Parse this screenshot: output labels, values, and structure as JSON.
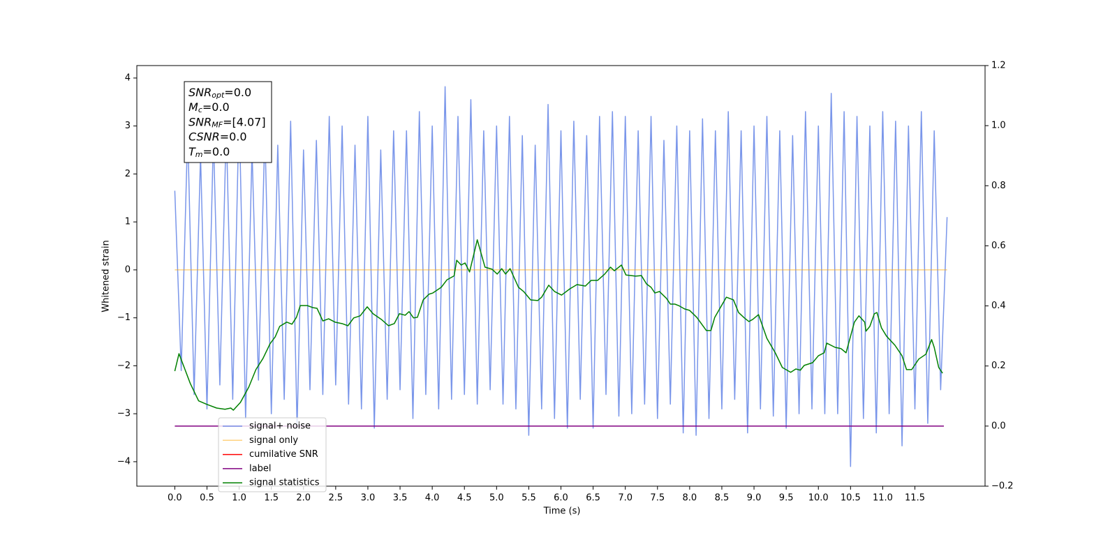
{
  "chart_data": {
    "type": "line",
    "xlabel": "Time (s)",
    "ylabel": "Whitened strain",
    "xlim": [
      -0.59,
      12.59
    ],
    "ylim": [
      -4.51,
      4.26
    ],
    "y2lim": [
      -0.2,
      1.2
    ],
    "xticks": [
      {
        "value": 0,
        "label": "0.0"
      },
      0.5,
      {
        "value": 1,
        "label": "1.0"
      },
      1.5,
      {
        "value": 2,
        "label": "2.0"
      },
      2.5,
      {
        "value": 3,
        "label": "3.0"
      },
      3.5,
      {
        "value": 4,
        "label": "4.0"
      },
      4.5,
      {
        "value": 5,
        "label": "5.0"
      },
      5.5,
      {
        "value": 6,
        "label": "6.0"
      },
      6.5,
      {
        "value": 7,
        "label": "7.0"
      },
      7.5,
      {
        "value": 8,
        "label": "8.0"
      },
      8.5,
      {
        "value": 9,
        "label": "9.0"
      },
      9.5,
      {
        "value": 10,
        "label": "10.0"
      },
      10.5,
      {
        "value": 11,
        "label": "11.0"
      },
      11.5
    ],
    "yticks": [
      {
        "value": -4,
        "label": "−4"
      },
      {
        "value": -3,
        "label": "−3"
      },
      {
        "value": -2,
        "label": "−2"
      },
      {
        "value": -1,
        "label": "−1"
      },
      0,
      1,
      2,
      3,
      4
    ],
    "y2ticks": [
      {
        "value": -0.2,
        "label": "−0.2"
      },
      {
        "value": 0,
        "label": "0.0"
      },
      0.2,
      0.4,
      0.6,
      0.8,
      {
        "value": 1,
        "label": "1.0"
      },
      {
        "value": 1.2,
        "label": "1.2"
      }
    ],
    "grid": false,
    "legend": "lower left",
    "annotation": [
      {
        "base": "SNR",
        "sub": "opt",
        "rest": "=0.0"
      },
      {
        "base": "M",
        "sub": "c",
        "rest": "=0.0"
      },
      {
        "base": "SNR",
        "sub": "MF",
        "rest": "=[4.07]"
      },
      {
        "base": "CSNR",
        "sub": null,
        "rest": "=0.0"
      },
      {
        "base": "T",
        "sub": "m",
        "rest": "=0.0"
      }
    ],
    "series": [
      {
        "name": "signal+ noise",
        "color": "#4169e1",
        "alpha": 0.7,
        "axis": "y",
        "x": [
          0,
          0.1,
          0.2,
          0.3,
          0.4,
          0.5,
          0.6,
          0.7,
          0.8,
          0.9,
          1,
          1.1,
          1.2,
          1.3,
          1.4,
          1.5,
          1.6,
          1.7,
          1.8,
          1.9,
          2,
          2.1,
          2.2,
          2.3,
          2.4,
          2.5,
          2.6,
          2.7,
          2.8,
          2.9,
          3,
          3.1,
          3.2,
          3.3,
          3.4,
          3.5,
          3.6,
          3.7,
          3.8,
          3.9,
          4,
          4.1,
          4.2,
          4.3,
          4.4,
          4.5,
          4.6,
          4.7,
          4.8,
          4.9,
          5,
          5.1,
          5.2,
          5.3,
          5.4,
          5.5,
          5.6,
          5.7,
          5.8,
          5.9,
          6,
          6.1,
          6.2,
          6.3,
          6.4,
          6.5,
          6.6,
          6.7,
          6.8,
          6.9,
          7,
          7.1,
          7.2,
          7.3,
          7.4,
          7.5,
          7.6,
          7.7,
          7.8,
          7.9,
          8,
          8.1,
          8.2,
          8.3,
          8.4,
          8.5,
          8.6,
          8.7,
          8.8,
          8.9,
          9,
          9.1,
          9.2,
          9.3,
          9.4,
          9.5,
          9.6,
          9.7,
          9.8,
          9.9,
          10,
          10.1,
          10.2,
          10.3,
          10.4,
          10.5,
          10.6,
          10.7,
          10.8,
          10.9,
          11,
          11.1,
          11.2,
          11.3,
          11.4,
          11.5,
          11.6,
          11.7,
          11.8,
          11.9,
          12
        ],
        "values": [
          1.65,
          -2.1,
          2.9,
          -2.6,
          2.4,
          -2.9,
          2.8,
          -2.4,
          3.0,
          -2.7,
          3.38,
          -3.1,
          2.5,
          -2.3,
          2.9,
          -3.0,
          2.6,
          -2.7,
          3.1,
          -3.3,
          2.5,
          -2.5,
          2.7,
          -2.6,
          3.2,
          -2.4,
          3.0,
          -2.8,
          2.6,
          -2.9,
          3.2,
          -3.3,
          2.5,
          -2.7,
          2.9,
          -2.5,
          2.9,
          -3.1,
          3.3,
          -2.6,
          3.0,
          -2.9,
          3.82,
          -2.7,
          3.2,
          -2.6,
          3.55,
          -2.8,
          2.9,
          -2.5,
          3.0,
          -2.8,
          3.2,
          -2.9,
          2.8,
          -3.45,
          2.6,
          -2.9,
          3.45,
          -3.1,
          2.9,
          -3.3,
          3.1,
          -2.7,
          2.8,
          -3.3,
          3.2,
          -2.6,
          3.3,
          -3.05,
          3.2,
          -3.0,
          2.9,
          -2.8,
          3.2,
          -3.1,
          2.7,
          -2.8,
          3.0,
          -3.4,
          2.9,
          -3.45,
          3.15,
          -3.1,
          2.9,
          -2.9,
          3.3,
          -2.7,
          2.9,
          -3.4,
          3.0,
          -2.9,
          3.2,
          -3.05,
          2.9,
          -3.3,
          2.8,
          -3.0,
          3.3,
          -2.9,
          3.0,
          -3.0,
          3.68,
          -3.0,
          3.3,
          -4.1,
          3.2,
          -3.1,
          3.0,
          -3.4,
          3.3,
          -3.0,
          3.1,
          -3.67,
          3.0,
          -2.9,
          3.3,
          -3.2,
          2.9,
          -2.5,
          1.1
        ]
      },
      {
        "name": "signal only",
        "color": "#ffa500",
        "alpha": 0.5,
        "axis": "y",
        "x": [
          0,
          12
        ],
        "values": [
          0,
          0
        ]
      },
      {
        "name": "cumilative SNR",
        "color": "#ff0000",
        "alpha": 1,
        "axis": "y",
        "x": [],
        "values": []
      },
      {
        "name": "label",
        "color": "#800080",
        "alpha": 1,
        "axis": "y2",
        "x": [
          0,
          11.95
        ],
        "values": [
          0,
          0
        ]
      },
      {
        "name": "signal statistics",
        "color": "#008000",
        "alpha": 1,
        "axis": "y2",
        "x": [
          0,
          0.065,
          0.15,
          0.24,
          0.37,
          0.5,
          0.65,
          0.78,
          0.87,
          0.91,
          1.02,
          1.15,
          1.26,
          1.37,
          1.48,
          1.56,
          1.63,
          1.74,
          1.82,
          1.89,
          1.95,
          2.06,
          2.15,
          2.21,
          2.3,
          2.39,
          2.49,
          2.6,
          2.69,
          2.78,
          2.88,
          2.99,
          3.08,
          3.21,
          3.32,
          3.41,
          3.49,
          3.58,
          3.64,
          3.71,
          3.77,
          3.86,
          3.95,
          4.01,
          4.14,
          4.23,
          4.34,
          4.38,
          4.45,
          4.51,
          4.58,
          4.7,
          4.82,
          4.93,
          5.01,
          5.08,
          5.14,
          5.21,
          5.34,
          5.42,
          5.53,
          5.64,
          5.7,
          5.81,
          5.9,
          6.01,
          6.14,
          6.25,
          6.38,
          6.47,
          6.57,
          6.68,
          6.77,
          6.83,
          6.94,
          7.01,
          7.16,
          7.25,
          7.33,
          7.4,
          7.46,
          7.53,
          7.64,
          7.7,
          7.77,
          7.83,
          7.92,
          8,
          8.11,
          8.26,
          8.33,
          8.39,
          8.57,
          8.68,
          8.76,
          8.85,
          8.92,
          8.98,
          9.07,
          9.2,
          9.33,
          9.44,
          9.57,
          9.65,
          9.72,
          9.78,
          9.91,
          10,
          10.09,
          10.13,
          10.26,
          10.35,
          10.43,
          10.56,
          10.63,
          10.72,
          10.74,
          10.8,
          10.87,
          10.91,
          10.98,
          11.06,
          11.19,
          11.3,
          11.37,
          11.45,
          11.56,
          11.67,
          11.76,
          11.8,
          11.87,
          11.93
        ],
        "values": [
          0.183,
          0.241,
          0.193,
          0.142,
          0.084,
          0.072,
          0.06,
          0.056,
          0.06,
          0.053,
          0.079,
          0.13,
          0.188,
          0.225,
          0.274,
          0.297,
          0.332,
          0.346,
          0.339,
          0.362,
          0.401,
          0.401,
          0.394,
          0.392,
          0.35,
          0.357,
          0.346,
          0.341,
          0.334,
          0.36,
          0.367,
          0.397,
          0.374,
          0.355,
          0.334,
          0.341,
          0.374,
          0.369,
          0.381,
          0.36,
          0.362,
          0.42,
          0.439,
          0.443,
          0.462,
          0.487,
          0.5,
          0.552,
          0.536,
          0.543,
          0.513,
          0.62,
          0.529,
          0.522,
          0.506,
          0.524,
          0.506,
          0.524,
          0.462,
          0.448,
          0.42,
          0.418,
          0.429,
          0.469,
          0.448,
          0.436,
          0.457,
          0.471,
          0.466,
          0.485,
          0.485,
          0.506,
          0.529,
          0.517,
          0.536,
          0.503,
          0.499,
          0.501,
          0.473,
          0.462,
          0.443,
          0.448,
          0.425,
          0.406,
          0.406,
          0.401,
          0.39,
          0.385,
          0.362,
          0.318,
          0.318,
          0.362,
          0.429,
          0.42,
          0.378,
          0.36,
          0.348,
          0.355,
          0.371,
          0.292,
          0.244,
          0.195,
          0.179,
          0.19,
          0.186,
          0.202,
          0.211,
          0.234,
          0.244,
          0.276,
          0.262,
          0.258,
          0.244,
          0.346,
          0.367,
          0.346,
          0.316,
          0.332,
          0.374,
          0.378,
          0.327,
          0.299,
          0.269,
          0.234,
          0.188,
          0.188,
          0.223,
          0.239,
          0.288,
          0.262,
          0.195,
          0.176
        ]
      }
    ]
  }
}
